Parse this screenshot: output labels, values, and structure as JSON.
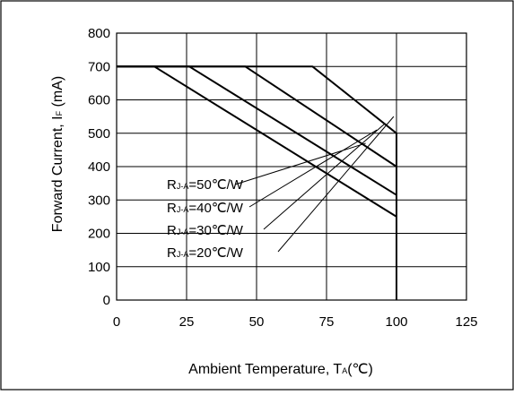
{
  "chart_data": {
    "type": "line",
    "title": "",
    "xlabel": {
      "main": "Ambient Temperature, T",
      "sub": "A",
      "unit": "(℃)"
    },
    "ylabel": {
      "main": "Forward Current, I",
      "sub": "F",
      "unit": " (mA)"
    },
    "xlim": [
      0,
      125
    ],
    "ylim": [
      0,
      800
    ],
    "x_ticks": [
      0,
      25,
      50,
      75,
      100,
      125
    ],
    "y_ticks": [
      0,
      100,
      200,
      300,
      400,
      500,
      600,
      700,
      800
    ],
    "grid": true,
    "series": [
      {
        "name": "R J-A=50℃/W",
        "label": {
          "main": "R",
          "sub": "J-A",
          "value": "=50℃/W"
        },
        "points": [
          [
            0,
            700
          ],
          [
            13.5,
            700
          ],
          [
            100,
            250
          ],
          [
            100,
            0
          ]
        ]
      },
      {
        "name": "R J-A=40℃/W",
        "label": {
          "main": "R",
          "sub": "J-A",
          "value": "=40℃/W"
        },
        "points": [
          [
            0,
            700
          ],
          [
            26,
            700
          ],
          [
            100,
            315
          ],
          [
            100,
            0
          ]
        ]
      },
      {
        "name": "R J-A=30℃/W",
        "label": {
          "main": "R",
          "sub": "J-A",
          "value": "=30℃/W"
        },
        "points": [
          [
            0,
            700
          ],
          [
            46,
            700
          ],
          [
            100,
            400
          ],
          [
            100,
            0
          ]
        ]
      },
      {
        "name": "R J-A=20℃/W",
        "label": {
          "main": "R",
          "sub": "J-A",
          "value": "=20℃/W"
        },
        "points": [
          [
            0,
            700
          ],
          [
            70,
            700
          ],
          [
            85,
            600
          ],
          [
            100,
            500
          ],
          [
            100,
            0
          ]
        ]
      }
    ]
  }
}
